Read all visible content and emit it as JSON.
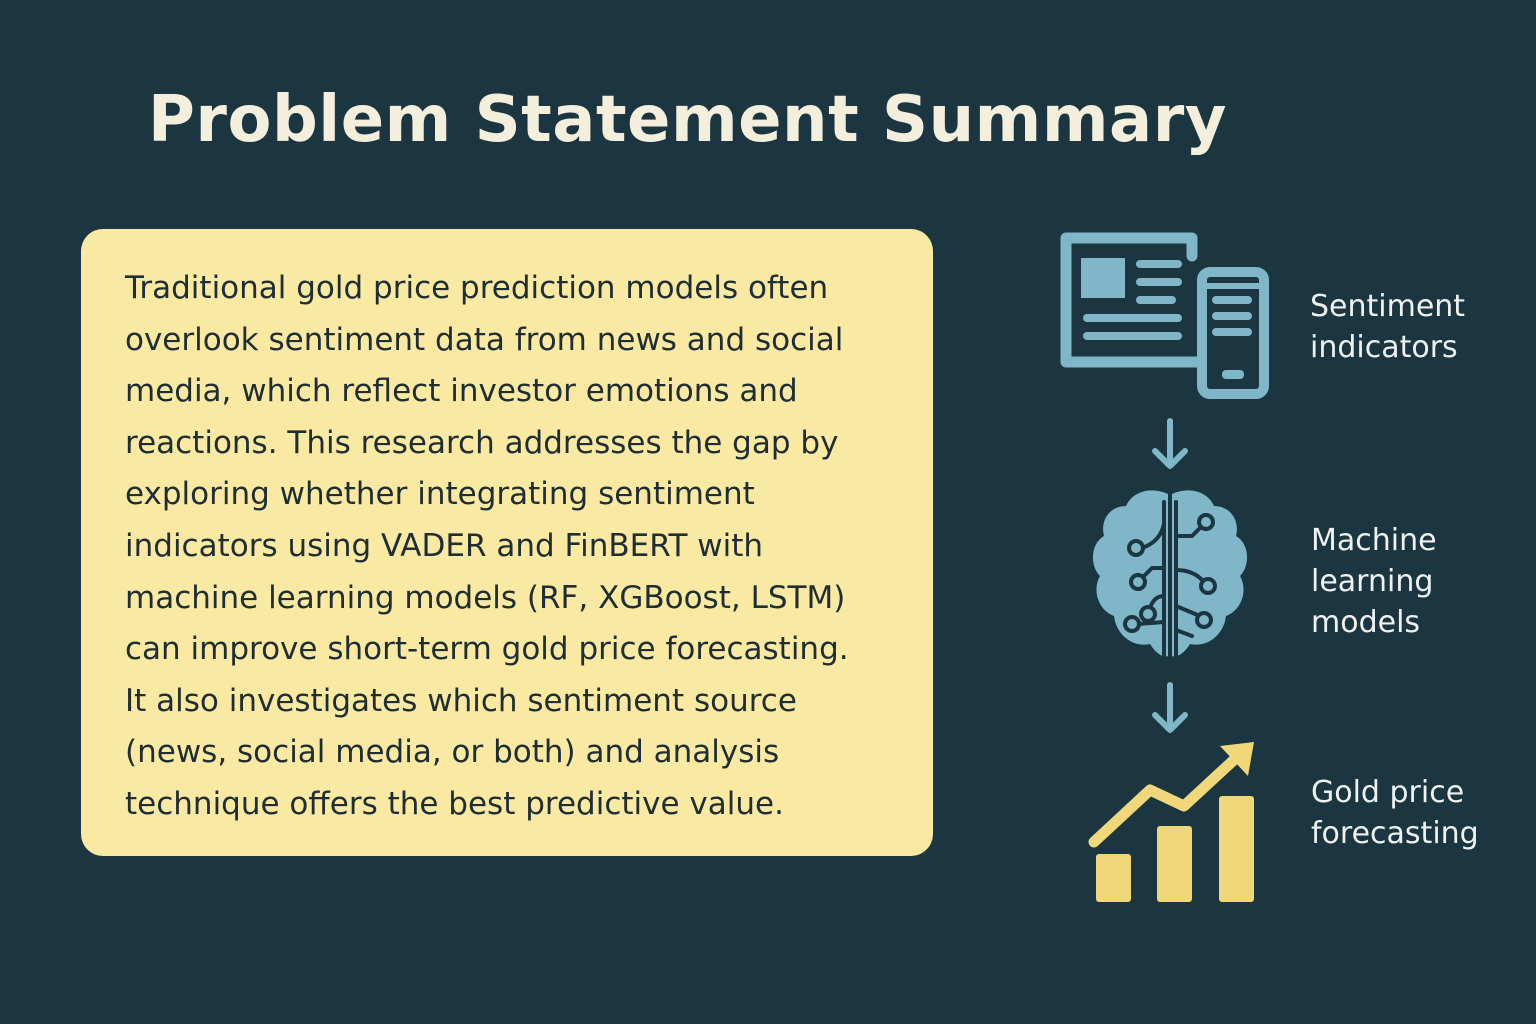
{
  "title": "Problem Statement Summary",
  "summary": {
    "lines": [
      "Traditional gold price prediction models often",
      "overlook sentiment data from news and social",
      "media, which reflect investor emotions and",
      "reactions. This research addresses the gap by",
      "exploring whether integrating sentiment",
      "indicators using VADER and FinBERT with",
      "machine learning models (RF, XGBoost, LSTM)",
      "can improve short-term gold price forecasting.",
      "It also investigates which sentiment source",
      "(news, social media, or both) and analysis",
      "technique offers the best predictive value."
    ]
  },
  "flow": {
    "steps": [
      {
        "icon": "news-devices-icon",
        "label_lines": [
          "Sentiment",
          "indicators"
        ]
      },
      {
        "icon": "brain-circuit-icon",
        "label_lines": [
          "Machine",
          "learning",
          "models"
        ]
      },
      {
        "icon": "rising-bar-chart-icon",
        "label_lines": [
          "Gold price",
          "forecasting"
        ]
      }
    ],
    "connector_icon": "arrow-down-icon"
  },
  "colors": {
    "background": "#1b3640",
    "title": "#f4eedd",
    "card": "#f9e9a2",
    "card_text": "#1e2e33",
    "icon_blue": "#7fb6c8",
    "icon_gold": "#f0d77a",
    "label_text": "#eef2f0"
  }
}
